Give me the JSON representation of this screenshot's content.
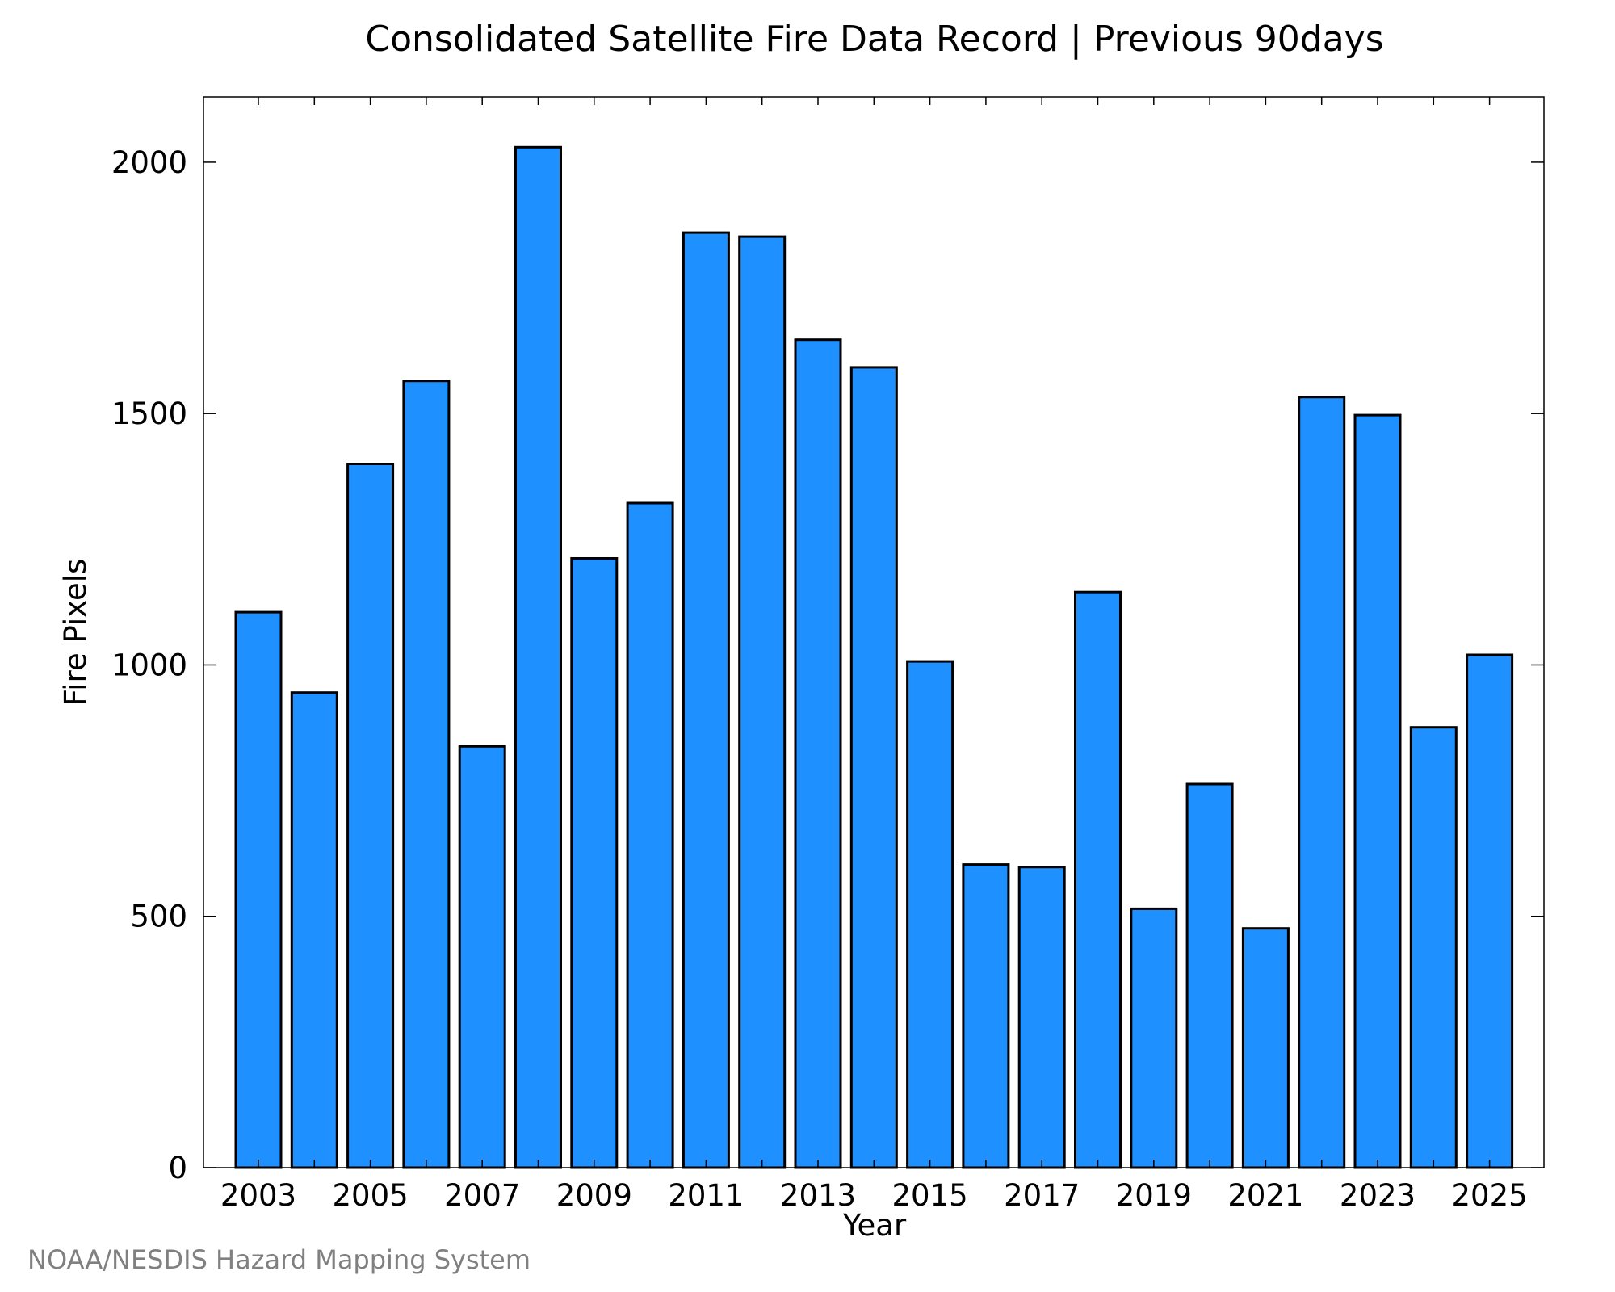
{
  "chart_data": {
    "type": "bar",
    "title": "Consolidated Satellite Fire Data Record | Previous 90days",
    "xlabel": "Year",
    "ylabel": "Fire Pixels",
    "categories": [
      "2003",
      "2004",
      "2005",
      "2006",
      "2007",
      "2008",
      "2009",
      "2010",
      "2011",
      "2012",
      "2013",
      "2014",
      "2015",
      "2016",
      "2017",
      "2018",
      "2019",
      "2020",
      "2021",
      "2022",
      "2023",
      "2024",
      "2025"
    ],
    "values": [
      1105,
      945,
      1400,
      1565,
      838,
      2030,
      1212,
      1322,
      1860,
      1852,
      1647,
      1592,
      1007,
      603,
      598,
      1145,
      515,
      763,
      476,
      1533,
      1497,
      876,
      1020
    ],
    "x_tick_labels": [
      "2003",
      "2005",
      "2007",
      "2009",
      "2011",
      "2013",
      "2015",
      "2017",
      "2019",
      "2021",
      "2023",
      "2025"
    ],
    "y_ticks": [
      0,
      500,
      1000,
      1500,
      2000
    ],
    "ylim": [
      0,
      2130
    ],
    "grid": false,
    "legend": "none",
    "bar_color": "#1e90ff",
    "bar_edge_color": "#000000"
  },
  "credit": {
    "text": "NOAA/NESDIS Hazard Mapping System",
    "color": "#808080"
  }
}
